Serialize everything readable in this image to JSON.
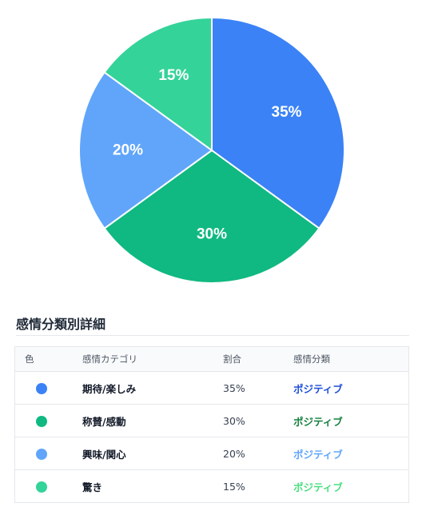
{
  "chart_data": {
    "type": "pie",
    "title": "",
    "start_angle": "top",
    "direction": "clockwise",
    "legend": "none",
    "slices": [
      {
        "name": "期待/楽しみ",
        "value": 35,
        "label": "35%",
        "color": "#3b82f6"
      },
      {
        "name": "称賛/感動",
        "value": 30,
        "label": "30%",
        "color": "#10b981"
      },
      {
        "name": "興味/関心",
        "value": 20,
        "label": "20%",
        "color": "#60a5fa"
      },
      {
        "name": "驚き",
        "value": 15,
        "label": "15%",
        "color": "#34d399"
      }
    ]
  },
  "table": {
    "title": "感情分類別詳細",
    "headers": {
      "color": "色",
      "category": "感情カテゴリ",
      "ratio": "割合",
      "classification": "感情分類"
    },
    "rows": [
      {
        "category": "期待/楽しみ",
        "ratio": "35%",
        "classification": "ポジティブ",
        "dot_color": "#3b82f6",
        "class_color": "#1d4ed8"
      },
      {
        "category": "称賛/感動",
        "ratio": "30%",
        "classification": "ポジティブ",
        "dot_color": "#10b981",
        "class_color": "#15803d"
      },
      {
        "category": "興味/関心",
        "ratio": "20%",
        "classification": "ポジティブ",
        "dot_color": "#60a5fa",
        "class_color": "#60a5fa"
      },
      {
        "category": "驚き",
        "ratio": "15%",
        "classification": "ポジティブ",
        "dot_color": "#34d399",
        "class_color": "#4ade80"
      }
    ]
  }
}
